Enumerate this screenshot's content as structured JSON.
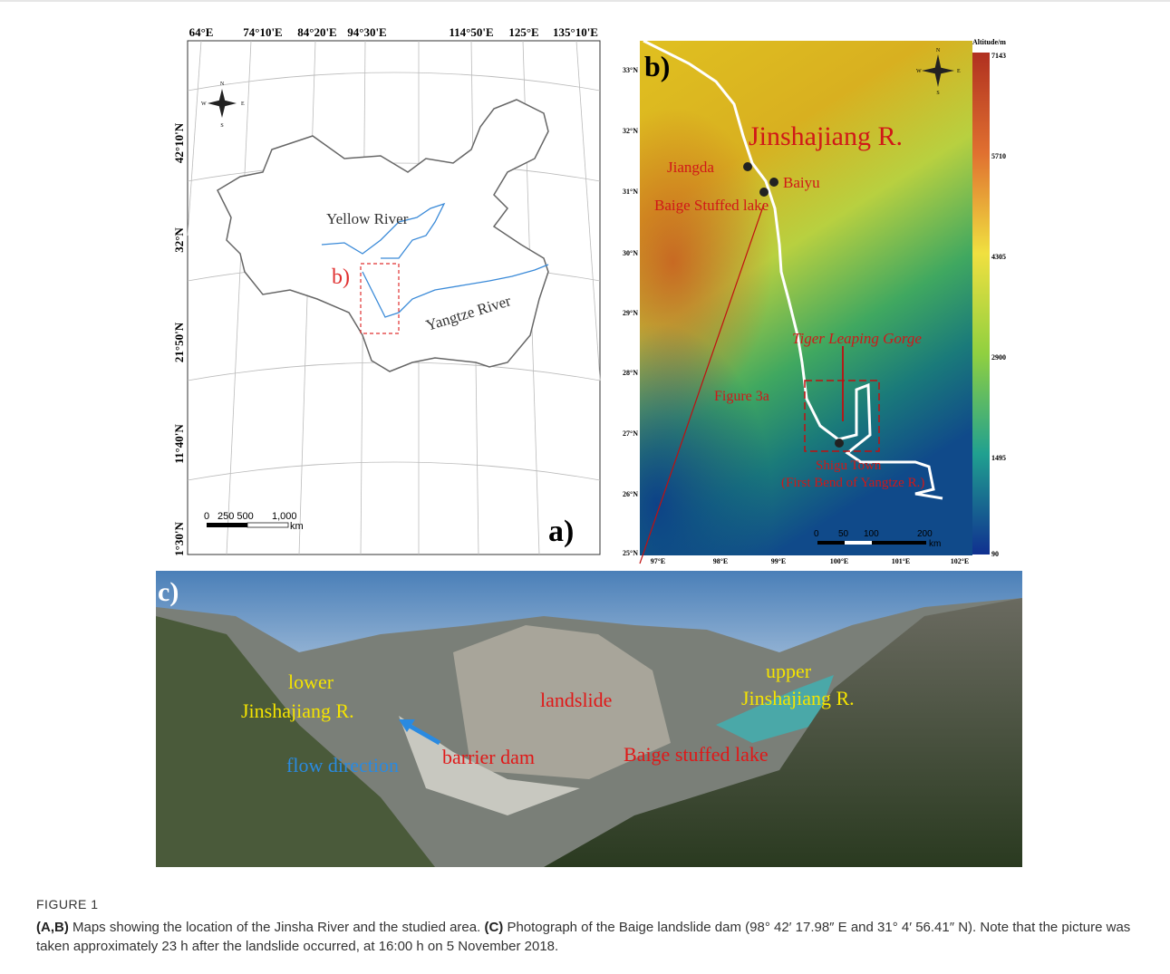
{
  "panel_a": {
    "label": "a)",
    "lon_labels": [
      "64°E",
      "74°10'E",
      "84°20'E",
      "94°30'E",
      "114°50'E",
      "125°E",
      "135°10'E"
    ],
    "lat_labels": [
      "42°10'N",
      "32°N",
      "21°50'N",
      "11°40'N",
      "1°30'N"
    ],
    "compass": [
      "N",
      "E",
      "S",
      "W"
    ],
    "rivers": [
      "Yellow River",
      "Yangtze River"
    ],
    "inset_label": "b)",
    "scale_labels": [
      "0",
      "250 500",
      "1,000"
    ],
    "scale_unit": "km"
  },
  "panel_b": {
    "label": "b)",
    "legend_title": "Altitude/m",
    "legend_values": [
      "7143",
      "5710",
      "4305",
      "2900",
      "1495",
      "90"
    ],
    "lat_labels": [
      "33°N",
      "32°N",
      "31°N",
      "30°N",
      "29°N",
      "28°N",
      "27°N",
      "26°N",
      "25°N"
    ],
    "lon_labels": [
      "97°E",
      "98°E",
      "99°E",
      "100°E",
      "101°E",
      "102°E"
    ],
    "compass": [
      "N",
      "E",
      "S",
      "W"
    ],
    "river": "Jinshajiang R.",
    "places": [
      "Jiangda",
      "Baiyu",
      "Baige Stuffed lake",
      "Tiger Leaping Gorge",
      "Figure 3a",
      "Shigu Town",
      "(First Bend of Yangtze R.)"
    ],
    "scale_labels": [
      "0",
      "50",
      "100",
      "200"
    ],
    "scale_unit": "km"
  },
  "panel_c": {
    "label": "c)",
    "lower": [
      "lower",
      "Jinshajiang R."
    ],
    "upper": [
      "upper",
      "Jinshajiang R."
    ],
    "landslide": "landslide",
    "flow": "flow direction",
    "dam": "barrier dam",
    "lake": "Baige stuffed lake"
  },
  "caption": {
    "label": "FIGURE 1",
    "segments": [
      "(A,B)",
      "Maps showing the location of the Jinsha River and the studied area.",
      "(C)",
      "Photograph of the Baige landslide dam (98° 42′ 17.98″ E and 31° 4′ 56.41″ N). Note that the picture was taken approximately 23 h after the landslide occurred, at 16:00 h on 5 November 2018."
    ]
  }
}
